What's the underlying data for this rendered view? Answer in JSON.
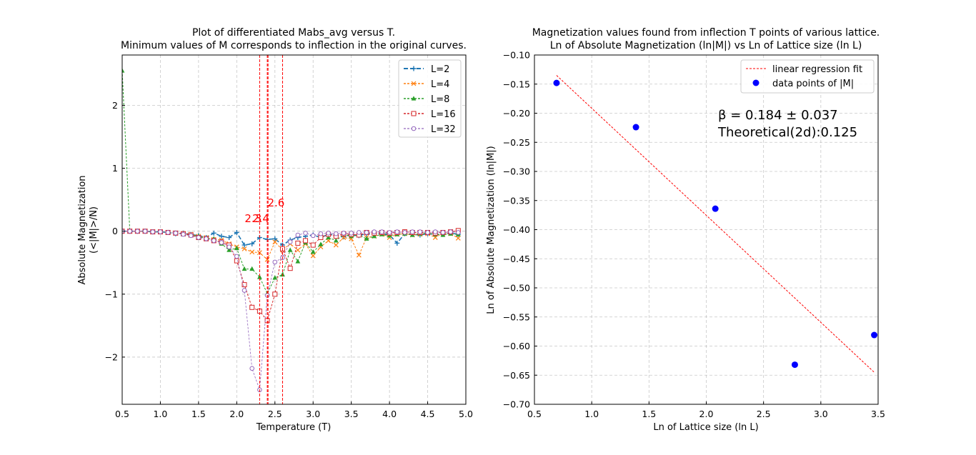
{
  "chart_data": [
    {
      "type": "line",
      "title": "Plot of differentiated Mabs_avg versus T.",
      "subtitle": "Minimum values of M corresponds to inflection in the original curves.",
      "xlabel": "Temperature (T)",
      "ylabel_line1": "Absolute Magnetization",
      "ylabel_line2": "(<|M|>/N)",
      "xlim": [
        0.5,
        5.0
      ],
      "ylim": [
        -2.75,
        2.8
      ],
      "xticks": [
        "0.5",
        "1.0",
        "1.5",
        "2.0",
        "2.5",
        "3.0",
        "3.5",
        "4.0",
        "4.5",
        "5.0"
      ],
      "yticks": [
        "−2",
        "−1",
        "0",
        "1",
        "2"
      ],
      "ytick_values": [
        -2,
        -1,
        0,
        1,
        2
      ],
      "legend_position": "top-right",
      "grid": true,
      "x": [
        0.5,
        0.6,
        0.7,
        0.8,
        0.9,
        1.0,
        1.1,
        1.2,
        1.3,
        1.4,
        1.5,
        1.6,
        1.7,
        1.8,
        1.9,
        2.0,
        2.1,
        2.2,
        2.3,
        2.4,
        2.5,
        2.6,
        2.7,
        2.8,
        2.9,
        3.0,
        3.1,
        3.2,
        3.3,
        3.4,
        3.5,
        3.6,
        3.7,
        3.8,
        3.9,
        4.0,
        4.1,
        4.2,
        4.3,
        4.4,
        4.5,
        4.6,
        4.7,
        4.8,
        4.9
      ],
      "series": [
        {
          "name": "L=2",
          "color": "#1f77b4",
          "marker": "plus",
          "dash": "6,3",
          "width": 1.6,
          "values": [
            0.0,
            0.0,
            0.0,
            0.0,
            -0.01,
            -0.01,
            -0.02,
            -0.04,
            -0.03,
            -0.05,
            -0.07,
            -0.1,
            -0.03,
            -0.08,
            -0.1,
            -0.02,
            -0.22,
            -0.2,
            -0.1,
            -0.13,
            -0.12,
            -0.22,
            -0.14,
            -0.1,
            -0.08,
            -0.06,
            -0.1,
            -0.05,
            -0.06,
            -0.09,
            -0.05,
            -0.07,
            -0.04,
            -0.05,
            -0.03,
            -0.06,
            -0.19,
            -0.04,
            -0.05,
            -0.06,
            -0.04,
            -0.05,
            -0.05,
            -0.03,
            -0.05
          ]
        },
        {
          "name": "L=4",
          "color": "#ff7f0e",
          "marker": "x",
          "dash": "3,2",
          "width": 1.0,
          "values": [
            0.0,
            0.0,
            0.0,
            0.0,
            -0.01,
            -0.01,
            -0.02,
            -0.03,
            -0.04,
            -0.05,
            -0.08,
            -0.1,
            -0.13,
            -0.14,
            -0.2,
            -0.25,
            -0.28,
            -0.33,
            -0.34,
            -0.45,
            -0.17,
            -0.3,
            -0.2,
            -0.3,
            -0.2,
            -0.39,
            -0.25,
            -0.15,
            -0.22,
            -0.1,
            -0.12,
            -0.38,
            -0.1,
            -0.08,
            -0.05,
            -0.1,
            -0.05,
            -0.04,
            -0.06,
            -0.05,
            -0.04,
            -0.1,
            -0.03,
            -0.04,
            -0.11
          ]
        },
        {
          "name": "L=8",
          "color": "#2ca02c",
          "marker": "triangle",
          "dash": "3,2",
          "width": 1.0,
          "values": [
            2.55,
            0.0,
            0.0,
            0.0,
            -0.01,
            -0.01,
            -0.02,
            -0.03,
            -0.05,
            -0.06,
            -0.08,
            -0.12,
            -0.12,
            -0.2,
            -0.3,
            -0.27,
            -0.6,
            -0.6,
            -0.73,
            -0.99,
            -0.74,
            -0.69,
            -0.3,
            -0.48,
            -0.18,
            -0.33,
            -0.21,
            -0.1,
            -0.15,
            -0.05,
            -0.08,
            -0.06,
            -0.12,
            -0.08,
            -0.05,
            -0.07,
            -0.05,
            -0.04,
            -0.06,
            -0.04,
            -0.03,
            -0.05,
            -0.06,
            -0.04,
            -0.05
          ]
        },
        {
          "name": "L=16",
          "color": "#d62728",
          "marker": "square",
          "dash": "3,2",
          "width": 1.0,
          "values": [
            0.0,
            0.0,
            0.0,
            0.0,
            -0.01,
            -0.01,
            -0.02,
            -0.03,
            -0.04,
            -0.06,
            -0.1,
            -0.12,
            -0.15,
            -0.17,
            -0.22,
            -0.47,
            -0.85,
            -1.21,
            -1.27,
            -1.42,
            -1.0,
            -0.28,
            -0.59,
            -0.19,
            -0.15,
            -0.22,
            -0.1,
            -0.05,
            -0.08,
            -0.04,
            -0.05,
            -0.06,
            -0.02,
            -0.03,
            -0.02,
            -0.03,
            -0.02,
            -0.01,
            -0.02,
            -0.02,
            -0.02,
            -0.03,
            -0.02,
            -0.01,
            0.01
          ]
        },
        {
          "name": "L=32",
          "color": "#9467bd",
          "marker": "circle",
          "dash": "3,2",
          "width": 0.8,
          "values": [
            0.0,
            0.0,
            0.0,
            0.0,
            -0.01,
            -0.01,
            -0.02,
            -0.03,
            -0.05,
            -0.07,
            -0.1,
            -0.12,
            -0.15,
            -0.18,
            -0.25,
            -0.4,
            -0.94,
            -2.18,
            -2.52,
            -1.02,
            -0.49,
            -0.42,
            -0.17,
            -0.06,
            -0.03,
            -0.07,
            -0.04,
            -0.03,
            -0.04,
            -0.03,
            -0.03,
            -0.02,
            -0.02,
            -0.01,
            -0.01,
            -0.02,
            -0.01,
            -0.02,
            -0.01,
            -0.01,
            -0.02,
            -0.01,
            -0.02,
            -0.01,
            -0.02
          ]
        }
      ],
      "vlines": [
        {
          "x": 2.3,
          "label": "2.3",
          "label_y": 0.1
        },
        {
          "x": 2.4,
          "label": "2.4",
          "label_y": 0.1
        },
        {
          "x": 2.6,
          "label": "2.6",
          "label_y": 0.35
        }
      ],
      "vline_extra_x": 2.41,
      "vline_color": "#ff0000"
    },
    {
      "type": "scatter",
      "title": "Magnetization values found from inflection T points of various lattice.",
      "subtitle": "Ln of Absolute Magnetization (ln|M|) vs Ln of Lattice size (ln L)",
      "xlabel": "Ln of Lattice size (ln L)",
      "ylabel": "Ln of Absolute Magnetization (ln|M|)",
      "xlim": [
        0.5,
        3.5
      ],
      "ylim": [
        -0.7,
        -0.1
      ],
      "xticks": [
        "0.5",
        "1.0",
        "1.5",
        "2.0",
        "2.5",
        "3.0",
        "3.5"
      ],
      "xtick_values": [
        0.5,
        1.0,
        1.5,
        2.0,
        2.5,
        3.0,
        3.5
      ],
      "yticks": [
        "−0.10",
        "−0.15",
        "−0.20",
        "−0.25",
        "−0.30",
        "−0.35",
        "−0.40",
        "−0.45",
        "−0.50",
        "−0.55",
        "−0.60",
        "−0.65",
        "−0.70"
      ],
      "ytick_values": [
        -0.1,
        -0.15,
        -0.2,
        -0.25,
        -0.3,
        -0.35,
        -0.4,
        -0.45,
        -0.5,
        -0.55,
        -0.6,
        -0.65,
        -0.7
      ],
      "legend_position": "top-right",
      "grid": true,
      "points": {
        "name": "data points of |M|",
        "color": "#0000ff",
        "x": [
          0.693,
          1.386,
          2.079,
          2.773,
          3.466
        ],
        "y": [
          -0.148,
          -0.224,
          -0.364,
          -0.632,
          -0.581
        ]
      },
      "fit": {
        "name": "linear regression fit",
        "color": "#ff0000",
        "x": [
          0.693,
          3.466
        ],
        "y": [
          -0.135,
          -0.645
        ]
      },
      "annotation_line1": "β = 0.184 ± 0.037",
      "annotation_line2": "Theoretical(2d):0.125"
    }
  ]
}
